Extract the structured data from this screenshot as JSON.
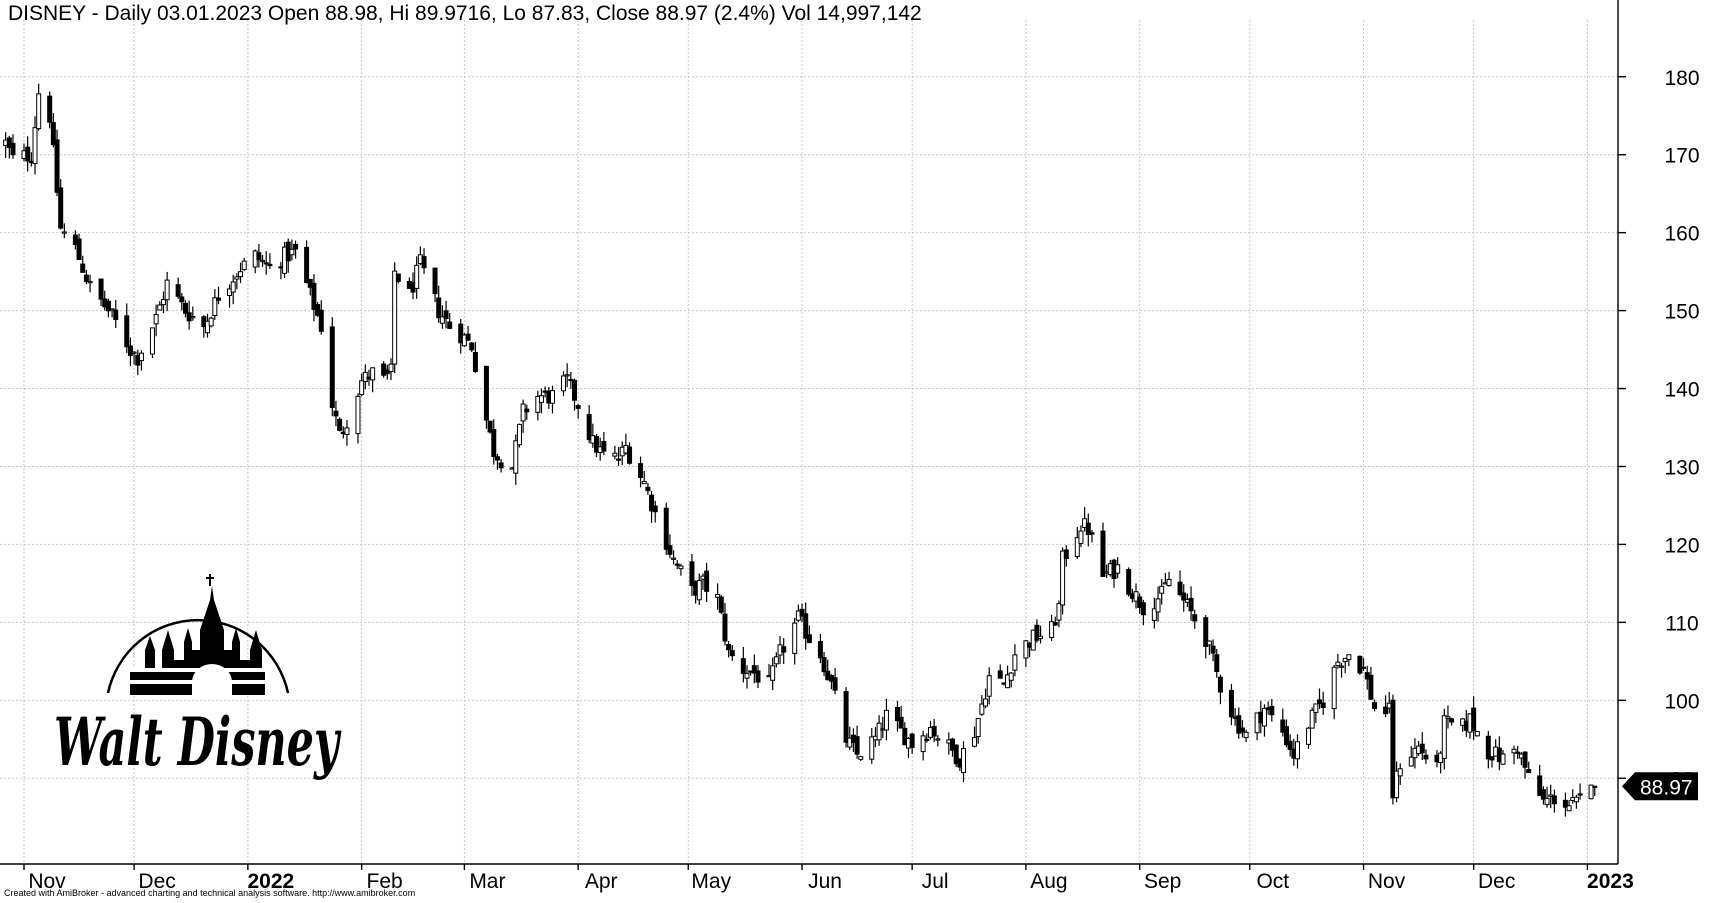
{
  "title": "DISNEY - Daily 03.01.2023 Open 88.98, Hi 89.9716, Lo 87.83, Close 88.97 (2.4%) Vol 14,997,142",
  "footer": "Created with AmiBroker - advanced charting and technical analysis software. http://www.amibroker.com",
  "logo_text": "Walt Disney",
  "last_price_label": "88.97",
  "chart_data": {
    "type": "candlestick",
    "title": "DISNEY - Daily 03.01.2023 Open 88.98, Hi 89.9716, Lo 87.83, Close 88.97 (2.4%) Vol 14,997,142",
    "ylim": [
      79,
      186
    ],
    "y_ticks": [
      180,
      170,
      160,
      150,
      140,
      130,
      120,
      110,
      100,
      90
    ],
    "x_labels": [
      {
        "label": "Nov",
        "day": 0,
        "year": false
      },
      {
        "label": "Dec",
        "day": 30,
        "year": false
      },
      {
        "label": "2022",
        "day": 61,
        "year": true
      },
      {
        "label": "Feb",
        "day": 92,
        "year": false
      },
      {
        "label": "Mar",
        "day": 120,
        "year": false
      },
      {
        "label": "Apr",
        "day": 151,
        "year": false
      },
      {
        "label": "May",
        "day": 181,
        "year": false
      },
      {
        "label": "Jun",
        "day": 212,
        "year": false
      },
      {
        "label": "Jul",
        "day": 242,
        "year": false
      },
      {
        "label": "Aug",
        "day": 273,
        "year": false
      },
      {
        "label": "Sep",
        "day": 304,
        "year": false
      },
      {
        "label": "Oct",
        "day": 334,
        "year": false
      },
      {
        "label": "Nov",
        "day": 365,
        "year": false
      },
      {
        "label": "Dec",
        "day": 395,
        "year": false
      },
      {
        "label": "2023",
        "day": 426,
        "year": true
      }
    ],
    "grid": true,
    "last_close": 88.97,
    "keypoints": [
      [
        "2021-10-27",
        171.5
      ],
      [
        "2021-10-29",
        169.5
      ],
      [
        "2021-11-03",
        170.0
      ],
      [
        "2021-11-05",
        178.0
      ],
      [
        "2021-11-08",
        175.0
      ],
      [
        "2021-11-11",
        160.5
      ],
      [
        "2021-11-15",
        158.0
      ],
      [
        "2021-11-19",
        153.0
      ],
      [
        "2021-11-24",
        150.0
      ],
      [
        "2021-11-26",
        148.5
      ],
      [
        "2021-11-30",
        145.0
      ],
      [
        "2021-12-02",
        144.0
      ],
      [
        "2021-12-07",
        149.0
      ],
      [
        "2021-12-10",
        153.5
      ],
      [
        "2021-12-15",
        150.0
      ],
      [
        "2021-12-20",
        148.0
      ],
      [
        "2021-12-24",
        152.0
      ],
      [
        "2021-12-30",
        155.5
      ],
      [
        "2022-01-03",
        157.0
      ],
      [
        "2022-01-07",
        155.5
      ],
      [
        "2022-01-11",
        157.0
      ],
      [
        "2022-01-14",
        157.5
      ],
      [
        "2022-01-18",
        152.0
      ],
      [
        "2022-01-21",
        148.0
      ],
      [
        "2022-01-24",
        138.0
      ],
      [
        "2022-01-26",
        134.0
      ],
      [
        "2022-01-28",
        136.0
      ],
      [
        "2022-02-01",
        141.0
      ],
      [
        "2022-02-04",
        142.0
      ],
      [
        "2022-02-07",
        141.0
      ],
      [
        "2022-02-09",
        142.0
      ],
      [
        "2022-02-10",
        155.0
      ],
      [
        "2022-02-14",
        152.0
      ],
      [
        "2022-02-17",
        156.0
      ],
      [
        "2022-02-22",
        150.0
      ],
      [
        "2022-02-25",
        148.0
      ],
      [
        "2022-02-28",
        147.0
      ],
      [
        "2022-03-03",
        145.5
      ],
      [
        "2022-03-07",
        136.0
      ],
      [
        "2022-03-09",
        132.0
      ],
      [
        "2022-03-11",
        131.0
      ],
      [
        "2022-03-14",
        130.0
      ],
      [
        "2022-03-17",
        137.0
      ],
      [
        "2022-03-21",
        139.0
      ],
      [
        "2022-03-25",
        139.0
      ],
      [
        "2022-03-29",
        141.0
      ],
      [
        "2022-04-01",
        138.0
      ],
      [
        "2022-04-05",
        133.0
      ],
      [
        "2022-04-08",
        131.5
      ],
      [
        "2022-04-12",
        131.0
      ],
      [
        "2022-04-14",
        132.5
      ],
      [
        "2022-04-19",
        128.0
      ],
      [
        "2022-04-22",
        124.0
      ],
      [
        "2022-04-27",
        118.0
      ],
      [
        "2022-05-02",
        114.0
      ],
      [
        "2022-05-05",
        115.0
      ],
      [
        "2022-05-09",
        113.0
      ],
      [
        "2022-05-12",
        106.0
      ],
      [
        "2022-05-16",
        104.0
      ],
      [
        "2022-05-19",
        103.5
      ],
      [
        "2022-05-23",
        102.0
      ],
      [
        "2022-05-26",
        106.0
      ],
      [
        "2022-05-31",
        110.5
      ],
      [
        "2022-06-03",
        108.0
      ],
      [
        "2022-06-06",
        106.0
      ],
      [
        "2022-06-09",
        102.0
      ],
      [
        "2022-06-13",
        95.0
      ],
      [
        "2022-06-16",
        93.0
      ],
      [
        "2022-06-21",
        95.0
      ],
      [
        "2022-06-24",
        98.0
      ],
      [
        "2022-06-28",
        96.0
      ],
      [
        "2022-07-01",
        94.5
      ],
      [
        "2022-07-06",
        96.5
      ],
      [
        "2022-07-11",
        94.0
      ],
      [
        "2022-07-14",
        92.5
      ],
      [
        "2022-07-18",
        96.0
      ],
      [
        "2022-07-22",
        103.0
      ],
      [
        "2022-07-26",
        102.0
      ],
      [
        "2022-07-29",
        106.0
      ],
      [
        "2022-08-03",
        108.0
      ],
      [
        "2022-08-08",
        109.0
      ],
      [
        "2022-08-10",
        112.0
      ],
      [
        "2022-08-11",
        118.0
      ],
      [
        "2022-08-16",
        122.5
      ],
      [
        "2022-08-18",
        122.0
      ],
      [
        "2022-08-22",
        116.0
      ],
      [
        "2022-08-26",
        117.0
      ],
      [
        "2022-08-30",
        114.0
      ],
      [
        "2022-09-02",
        112.0
      ],
      [
        "2022-09-07",
        113.5
      ],
      [
        "2022-09-09",
        115.5
      ],
      [
        "2022-09-14",
        112.0
      ],
      [
        "2022-09-19",
        108.0
      ],
      [
        "2022-09-23",
        102.0
      ],
      [
        "2022-09-27",
        97.5
      ],
      [
        "2022-09-30",
        95.5
      ],
      [
        "2022-10-05",
        99.0
      ],
      [
        "2022-10-10",
        96.0
      ],
      [
        "2022-10-13",
        93.0
      ],
      [
        "2022-10-17",
        97.0
      ],
      [
        "2022-10-21",
        100.0
      ],
      [
        "2022-10-25",
        105.0
      ],
      [
        "2022-10-28",
        106.0
      ],
      [
        "2022-11-01",
        104.0
      ],
      [
        "2022-11-04",
        99.0
      ],
      [
        "2022-11-08",
        98.5
      ],
      [
        "2022-11-09",
        88.0
      ],
      [
        "2022-11-11",
        92.0
      ],
      [
        "2022-11-16",
        94.0
      ],
      [
        "2022-11-21",
        91.0
      ],
      [
        "2022-11-23",
        97.0
      ],
      [
        "2022-11-28",
        96.5
      ],
      [
        "2022-11-30",
        97.5
      ],
      [
        "2022-12-05",
        93.5
      ],
      [
        "2022-12-09",
        92.5
      ],
      [
        "2022-12-13",
        94.0
      ],
      [
        "2022-12-16",
        90.0
      ],
      [
        "2022-12-20",
        87.0
      ],
      [
        "2022-12-23",
        87.5
      ],
      [
        "2022-12-27",
        86.5
      ],
      [
        "2022-12-30",
        86.9
      ],
      [
        "2023-01-03",
        88.97
      ]
    ]
  }
}
